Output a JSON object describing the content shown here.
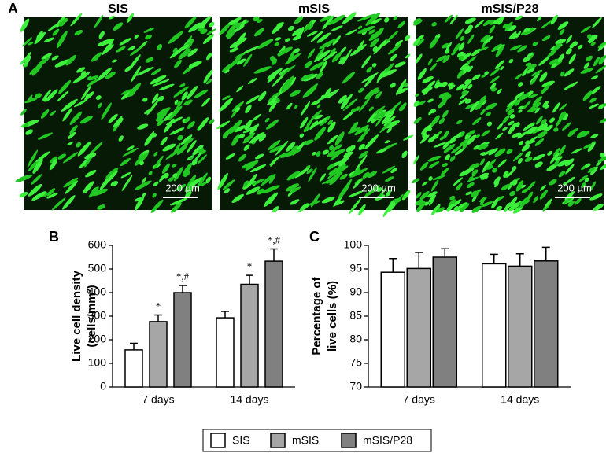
{
  "figure": {
    "panel_label": "A",
    "images": [
      {
        "title": "SIS",
        "scale_bar": "200 µm"
      },
      {
        "title": "mSIS",
        "scale_bar": "200 µm"
      },
      {
        "title": "mSIS/P28",
        "scale_bar": "200 µm"
      }
    ]
  },
  "chart_data": [
    {
      "type": "bar",
      "panel_label": "B",
      "y_label": [
        "Live cell density",
        "(cells/mm²)"
      ],
      "categories": [
        "7 days",
        "14 days"
      ],
      "ylim": [
        0,
        600
      ],
      "yticks": [
        0,
        100,
        200,
        300,
        400,
        500,
        600
      ],
      "series": [
        {
          "name": "SIS",
          "color": "#ffffff",
          "values": [
            157,
            293
          ],
          "errors": [
            28,
            27
          ],
          "annotations": [
            null,
            null
          ]
        },
        {
          "name": "mSIS",
          "color": "#a6a6a6",
          "values": [
            277,
            435
          ],
          "errors": [
            28,
            38
          ],
          "annotations": [
            "*",
            "*"
          ]
        },
        {
          "name": "mSIS/P28",
          "color": "#808080",
          "values": [
            400,
            533
          ],
          "errors": [
            30,
            52
          ],
          "annotations": [
            "*,#",
            "*,#"
          ]
        }
      ]
    },
    {
      "type": "bar",
      "panel_label": "C",
      "y_label": [
        "Percentage of",
        "live cells (%)"
      ],
      "categories": [
        "7 days",
        "14 days"
      ],
      "ylim": [
        70,
        100
      ],
      "yticks": [
        70,
        75,
        80,
        85,
        90,
        95,
        100
      ],
      "series": [
        {
          "color": "#ffffff",
          "values": [
            94.3,
            96.1
          ],
          "errors": [
            2.9,
            2.0
          ]
        },
        {
          "color": "#a6a6a6",
          "values": [
            95.1,
            95.6
          ],
          "errors": [
            3.4,
            2.6
          ]
        },
        {
          "color": "#808080",
          "values": [
            97.5,
            96.7
          ],
          "errors": [
            1.8,
            2.9
          ]
        }
      ]
    }
  ]
}
